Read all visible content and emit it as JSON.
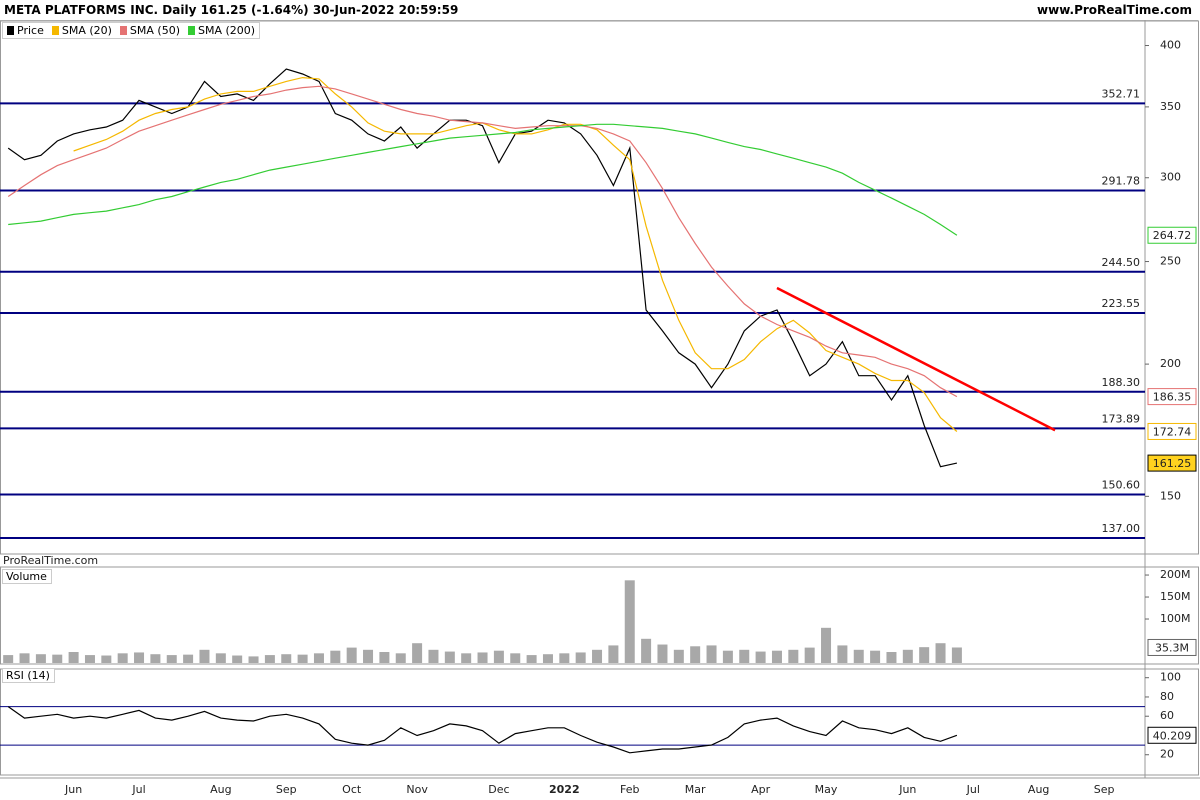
{
  "header": {
    "title": "META PLATFORMS INC. Daily 161.25 (-1.64%) 30-Jun-2022 20:59:59",
    "site": "www.ProRealTime.com"
  },
  "chart_data": [
    {
      "type": "line",
      "watermark": "ProRealTime.com",
      "log_scale": true,
      "categories": [
        null,
        null,
        null,
        null,
        "Jun",
        null,
        null,
        null,
        "Jul",
        null,
        null,
        null,
        null,
        "Aug",
        null,
        null,
        null,
        "Sep",
        null,
        null,
        null,
        "Oct",
        null,
        null,
        null,
        "Nov",
        null,
        null,
        null,
        null,
        "Dec",
        null,
        null,
        null,
        "2022",
        null,
        null,
        null,
        "Feb",
        null,
        null,
        null,
        "Mar",
        null,
        null,
        null,
        "Apr",
        null,
        null,
        null,
        "May",
        null,
        null,
        null,
        null,
        "Jun",
        null,
        null,
        null,
        "Jul",
        null,
        null,
        null,
        "Aug",
        null,
        null,
        null,
        "Sep",
        null,
        null
      ],
      "series": [
        {
          "name": "Price",
          "color": "#000000",
          "values": [
            320,
            312,
            315,
            325,
            330,
            333,
            335,
            340,
            355,
            350,
            345,
            350,
            370,
            358,
            360,
            355,
            368,
            380,
            376,
            370,
            345,
            340,
            330,
            325,
            335,
            320,
            330,
            340,
            340,
            336,
            310,
            330,
            332,
            340,
            338,
            330,
            315,
            295,
            320,
            225,
            215,
            205,
            200,
            190,
            200,
            215,
            222,
            225,
            210,
            195,
            200,
            210,
            195,
            195,
            185,
            195,
            175,
            160,
            161.25,
            null,
            null,
            null,
            null,
            null,
            null,
            null,
            null,
            null,
            null,
            null
          ]
        },
        {
          "name": "SMA (20)",
          "color": "#f5b800",
          "values": [
            null,
            null,
            null,
            null,
            318,
            322,
            326,
            332,
            340,
            345,
            348,
            350,
            356,
            360,
            362,
            362,
            366,
            370,
            373,
            372,
            360,
            350,
            338,
            332,
            330,
            330,
            330,
            333,
            336,
            338,
            333,
            330,
            330,
            333,
            337,
            337,
            333,
            322,
            312,
            270,
            240,
            220,
            205,
            198,
            198,
            202,
            210,
            216,
            220,
            214,
            206,
            203,
            200,
            196,
            193,
            193,
            188,
            178,
            172.74,
            null,
            null,
            null,
            null,
            null,
            null,
            null,
            null,
            null,
            null,
            null
          ]
        },
        {
          "name": "SMA (50)",
          "color": "#e57373",
          "values": [
            288,
            295,
            302,
            308,
            312,
            316,
            320,
            326,
            332,
            336,
            340,
            344,
            348,
            352,
            355,
            358,
            360,
            363,
            365,
            366,
            364,
            360,
            356,
            352,
            348,
            345,
            343,
            340,
            339,
            338,
            336,
            334,
            335,
            336,
            336,
            336,
            334,
            330,
            325,
            310,
            293,
            275,
            260,
            247,
            237,
            228,
            222,
            218,
            215,
            212,
            208,
            205,
            204,
            203,
            200,
            198,
            195,
            190,
            186.35,
            null,
            null,
            null,
            null,
            null,
            null,
            null,
            null,
            null,
            null,
            null
          ]
        },
        {
          "name": "SMA (200)",
          "color": "#33cc33",
          "values": [
            271,
            272,
            273,
            275,
            277,
            278,
            279,
            281,
            283,
            286,
            288,
            291,
            294,
            297,
            299,
            302,
            305,
            307,
            309,
            311,
            313,
            315,
            317,
            319,
            321,
            323,
            325,
            327,
            328,
            329,
            330,
            331,
            333,
            334,
            335,
            336,
            337,
            337,
            336,
            335,
            334,
            332,
            330,
            327,
            324,
            321,
            319,
            316,
            313,
            310,
            307,
            303,
            297,
            292,
            287,
            282,
            277,
            271,
            264.72,
            null,
            null,
            null,
            null,
            null,
            null,
            null,
            null,
            null,
            null,
            null
          ]
        }
      ],
      "ylim": [
        132.6,
        421
      ],
      "yticks": [
        400,
        350,
        300,
        250,
        200,
        150
      ],
      "levels": [
        352.71,
        291.78,
        {
          "value": 244.5,
          "label": "244.50"
        },
        223.55,
        {
          "value": 188.3,
          "label": "188.30"
        },
        173.89,
        {
          "value": 150.6,
          "label": "150.60"
        },
        {
          "value": 137,
          "label": "137.00"
        }
      ],
      "level_color": "#000080",
      "trendline": {
        "from_index": 47,
        "from_value": 236,
        "to_index": 64,
        "to_value": 173.2,
        "color": "#ff0000"
      }
    },
    {
      "type": "bar",
      "title": "Volume",
      "color": "#a8a8a8",
      "values": [
        18000000,
        22000000,
        20000000,
        19000000,
        25000000,
        18000000,
        17000000,
        22000000,
        24000000,
        20000000,
        18000000,
        19000000,
        30000000,
        22000000,
        17000000,
        15000000,
        18000000,
        20000000,
        19000000,
        22000000,
        28000000,
        35000000,
        30000000,
        25000000,
        22000000,
        45000000,
        30000000,
        26000000,
        22000000,
        24000000,
        28000000,
        22000000,
        18000000,
        20000000,
        22000000,
        24000000,
        30000000,
        40000000,
        188000000,
        55000000,
        42000000,
        30000000,
        38000000,
        40000000,
        28000000,
        30000000,
        26000000,
        28000000,
        30000000,
        35000000,
        80000000,
        40000000,
        30000000,
        28000000,
        25000000,
        30000000,
        36000000,
        45000000,
        35300000,
        null,
        null,
        null,
        null,
        null,
        null,
        null,
        null,
        null,
        null,
        null
      ],
      "last_label": "35.3M",
      "ylim": [
        0,
        216000000
      ],
      "yticks": [
        {
          "value": 200000000,
          "label": "200M"
        },
        {
          "value": 150000000,
          "label": "150M"
        },
        {
          "value": 100000000,
          "label": "100M"
        }
      ]
    },
    {
      "type": "line",
      "title": "RSI (14)",
      "series": [
        {
          "color": "#000000",
          "values": [
            70,
            58,
            60,
            62,
            58,
            60,
            58,
            62,
            66,
            58,
            56,
            60,
            65,
            58,
            56,
            55,
            60,
            62,
            58,
            52,
            36,
            32,
            30,
            35,
            48,
            40,
            45,
            52,
            50,
            45,
            32,
            42,
            45,
            48,
            48,
            40,
            33,
            28,
            22,
            24,
            26,
            26,
            28,
            30,
            38,
            52,
            56,
            58,
            50,
            44,
            40,
            55,
            48,
            46,
            42,
            48,
            38,
            34,
            40.209,
            null,
            null,
            null,
            null,
            null,
            null,
            null,
            null,
            null,
            null,
            null
          ]
        }
      ],
      "ylim": [
        0,
        108
      ],
      "yticks": [
        100,
        80,
        60,
        20
      ],
      "levels": [
        70,
        30
      ],
      "level_color": "#000080"
    }
  ]
}
